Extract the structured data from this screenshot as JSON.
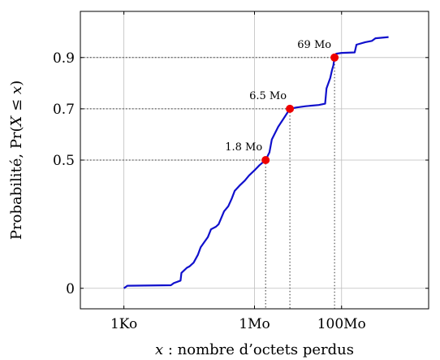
{
  "chart_data": {
    "type": "line",
    "title": "",
    "xlabel": "x : nombre d’octets perdus",
    "xlabel_var": "x",
    "xlabel_rest": " : nombre d’octets perdus",
    "ylabel_prefix": "Probabilité, Pr(",
    "ylabel_var_x1": "X",
    "ylabel_op": " ≤ ",
    "ylabel_var_x2": "x",
    "ylabel_suffix": ")",
    "x_scale": "log",
    "x_unit": "bytes",
    "xlim": [
      100.0,
      10000000000.0
    ],
    "ylim": [
      -0.08,
      1.08
    ],
    "x_ticks": [
      {
        "value": 1000.0,
        "label": "1Ko"
      },
      {
        "value": 1000000.0,
        "label": "1Mo"
      },
      {
        "value": 100000000.0,
        "label": "100Mo"
      }
    ],
    "y_ticks": [
      {
        "value": 0,
        "label": "0"
      },
      {
        "value": 0.5,
        "label": "0.5"
      },
      {
        "value": 0.7,
        "label": "0.7"
      },
      {
        "value": 0.9,
        "label": "0.9"
      }
    ],
    "grid": true,
    "series": [
      {
        "color": "#1010cc",
        "points": [
          [
            1000.0,
            0.0
          ],
          [
            1200.0,
            0.01
          ],
          [
            12000.0,
            0.012
          ],
          [
            14000.0,
            0.02
          ],
          [
            20000.0,
            0.03
          ],
          [
            21000.0,
            0.06
          ],
          [
            28000.0,
            0.08
          ],
          [
            32000.0,
            0.085
          ],
          [
            40000.0,
            0.1
          ],
          [
            50000.0,
            0.13
          ],
          [
            58000.0,
            0.16
          ],
          [
            70000.0,
            0.18
          ],
          [
            85000.0,
            0.2
          ],
          [
            100000.0,
            0.23
          ],
          [
            130000.0,
            0.24
          ],
          [
            150000.0,
            0.25
          ],
          [
            200000.0,
            0.3
          ],
          [
            250000.0,
            0.32
          ],
          [
            300000.0,
            0.35
          ],
          [
            350000.0,
            0.38
          ],
          [
            450000.0,
            0.4
          ],
          [
            600000.0,
            0.42
          ],
          [
            750000.0,
            0.44
          ],
          [
            1000000.0,
            0.46
          ],
          [
            1300000.0,
            0.48
          ],
          [
            1800000.0,
            0.5
          ],
          [
            2200000.0,
            0.53
          ],
          [
            2500000.0,
            0.58
          ],
          [
            3500000.0,
            0.63
          ],
          [
            5000000.0,
            0.67
          ],
          [
            6500000.0,
            0.7
          ],
          [
            9000000.0,
            0.705
          ],
          [
            15000000.0,
            0.71
          ],
          [
            30000000.0,
            0.715
          ],
          [
            42000000.0,
            0.72
          ],
          [
            45000000.0,
            0.78
          ],
          [
            55000000.0,
            0.82
          ],
          [
            60000000.0,
            0.85
          ],
          [
            65000000.0,
            0.87
          ],
          [
            69000000.0,
            0.9
          ],
          [
            75000000.0,
            0.915
          ],
          [
            100000000.0,
            0.918
          ],
          [
            200000000.0,
            0.92
          ],
          [
            220000000.0,
            0.95
          ],
          [
            350000000.0,
            0.96
          ],
          [
            500000000.0,
            0.965
          ],
          [
            600000000.0,
            0.975
          ],
          [
            1200000000.0,
            0.98
          ]
        ]
      }
    ],
    "markers": [
      {
        "x": 1800000.0,
        "y": 0.5,
        "label": "1.8 Mo"
      },
      {
        "x": 6500000.0,
        "y": 0.7,
        "label": "6.5 Mo"
      },
      {
        "x": 69000000.0,
        "y": 0.9,
        "label": "69 Mo"
      }
    ],
    "marker_color": "#ee0000",
    "grid_color": "#bdbdbd",
    "guide_color": "#333333"
  }
}
